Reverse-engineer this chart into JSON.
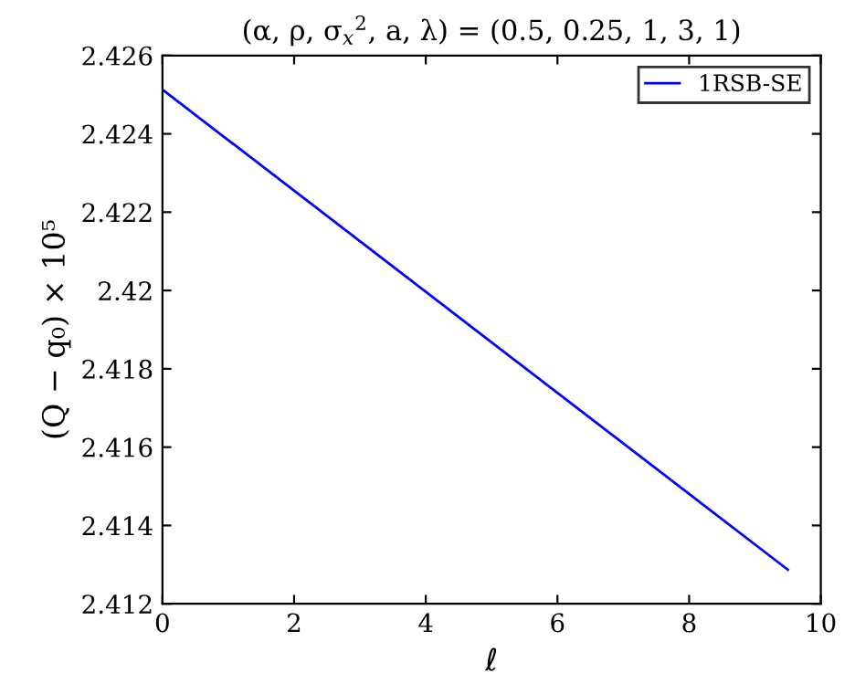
{
  "chart_data": {
    "type": "line",
    "title": "(α, ρ, σ$_{x}$$^{2}$, a, λ) = (0.5, 0.25, 1, 3, 1)",
    "xlabel": "ℓ",
    "ylabel": "(Q − q₀) × 10⁵",
    "x": [
      0,
      9.5
    ],
    "series": [
      {
        "name": "1RSB-SE",
        "color": "#0000ff",
        "values": [
          2.42513,
          2.41287
        ]
      }
    ],
    "xlim": [
      0,
      10
    ],
    "xticks": [
      0,
      2,
      4,
      6,
      8,
      10
    ],
    "ylim": [
      2.412,
      2.426
    ],
    "yticks": [
      2.412,
      2.414,
      2.416,
      2.418,
      2.42,
      2.422,
      2.424,
      2.426
    ],
    "grid": false,
    "legend": "top right",
    "marker": "none",
    "line_style": "solid"
  }
}
